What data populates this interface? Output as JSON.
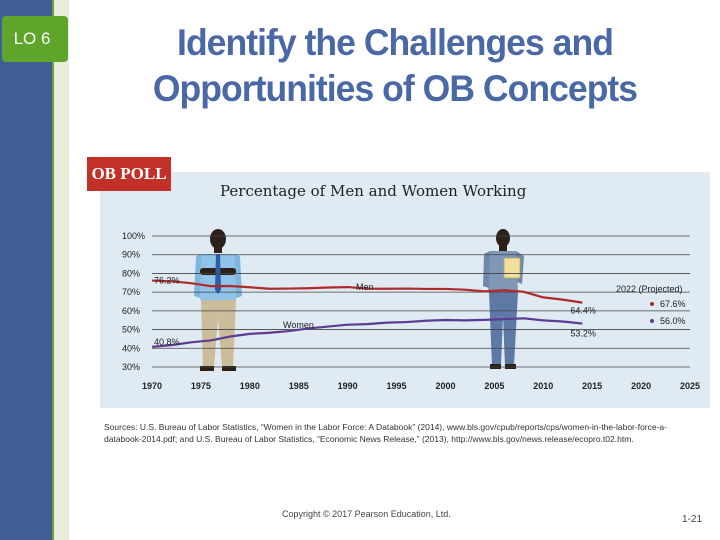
{
  "slide": {
    "lo_label": "LO 6",
    "title_line1": "Identify the Challenges and",
    "title_line2": "Opportunities of OB Concepts",
    "copyright": "Copyright © 2017 Pearson Education, Ltd.",
    "page_number": "1-21",
    "sources": "Sources: U.S. Bureau of Labor Statistics, “Women in the Labor Force: A Databook” (2014), www.bls.gov/cpub/reports/cps/women-in-the-labor-force-a-databook-2014.pdf; and U.S. Bureau of Labor Statistics, “Economic News Release,” (2013), http://www.bls.gov/news.release/ecopro.t02.htm."
  },
  "badge": {
    "label": "OB POLL"
  },
  "colors": {
    "men": "#b02a2a",
    "women": "#5d3a93",
    "panel": "#dfeaf2",
    "title": "#4a68a6",
    "accent": "#5fa52c"
  },
  "chart_data": {
    "type": "line",
    "title": "Percentage of Men and Women Working",
    "xlabel": "",
    "ylabel": "",
    "xlim": [
      1970,
      2025
    ],
    "ylim": [
      30,
      100
    ],
    "y_ticks": [
      "30%",
      "40%",
      "50%",
      "60%",
      "70%",
      "80%",
      "90%",
      "100%"
    ],
    "x_ticks": [
      "1970",
      "1975",
      "1980",
      "1985",
      "1990",
      "1995",
      "2000",
      "2005",
      "2010",
      "2015",
      "2020",
      "2025"
    ],
    "series": [
      {
        "name": "Men",
        "color": "#b02a2a",
        "x": [
          1970,
          1972,
          1974,
          1976,
          1978,
          1980,
          1982,
          1984,
          1986,
          1988,
          1990,
          1992,
          1994,
          1996,
          1998,
          2000,
          2002,
          2004,
          2006,
          2008,
          2010,
          2012,
          2014
        ],
        "values": [
          76.2,
          75.8,
          74.8,
          73.2,
          73.3,
          72.6,
          71.8,
          71.9,
          72.1,
          72.5,
          72.7,
          71.9,
          71.8,
          71.9,
          71.7,
          71.7,
          71.3,
          70.4,
          71.0,
          70.2,
          67.2,
          66.0,
          64.4
        ]
      },
      {
        "name": "Women",
        "color": "#5d3a93",
        "x": [
          1970,
          1972,
          1974,
          1976,
          1978,
          1980,
          1982,
          1984,
          1986,
          1988,
          1990,
          1992,
          1994,
          1996,
          1998,
          2000,
          2002,
          2004,
          2006,
          2008,
          2010,
          2012,
          2014
        ],
        "values": [
          40.8,
          41.7,
          43.2,
          44.2,
          46.3,
          47.7,
          48.3,
          49.2,
          50.6,
          51.6,
          52.6,
          52.9,
          53.7,
          54.0,
          54.7,
          55.1,
          54.9,
          55.2,
          55.6,
          56.0,
          54.9,
          54.3,
          53.2
        ]
      }
    ],
    "projected": {
      "label": "2022 (Projected)",
      "points": [
        {
          "series": "Men",
          "value": 67.6,
          "label": "67.6%"
        },
        {
          "series": "Women",
          "value": 56.0,
          "label": "56.0%"
        }
      ]
    },
    "annotations": [
      {
        "series": "Men",
        "x": 1970,
        "label": "76.2%"
      },
      {
        "series": "Women",
        "x": 1970,
        "label": "40.8%"
      },
      {
        "series": "Men",
        "x": 2014,
        "label": "64.4%"
      },
      {
        "series": "Women",
        "x": 2014,
        "label": "53.2%"
      }
    ],
    "series_labels": [
      {
        "series": "Men",
        "label": "Men"
      },
      {
        "series": "Women",
        "label": "Women"
      }
    ]
  }
}
